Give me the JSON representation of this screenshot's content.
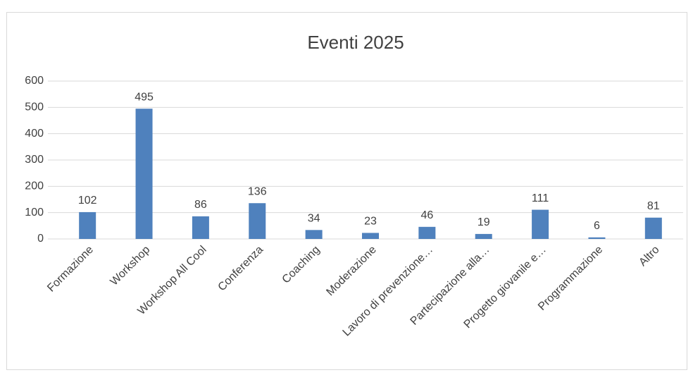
{
  "chart_data": {
    "type": "bar",
    "title": "Eventi 2025",
    "categories": [
      "Formazione",
      "Workshop",
      "Workshop All Cool",
      "Conferenza",
      "Coaching",
      "Moderazione",
      "Lavoro di prevenzione…",
      "Partecipazione alla…",
      "Progetto giovanile e…",
      "Programmazione",
      "Altro"
    ],
    "values": [
      102,
      495,
      86,
      136,
      34,
      23,
      46,
      19,
      111,
      6,
      81
    ],
    "color": "#4f81bd",
    "ylim": [
      0,
      600
    ],
    "yticks": [
      0,
      100,
      200,
      300,
      400,
      500,
      600
    ],
    "grid": true
  }
}
